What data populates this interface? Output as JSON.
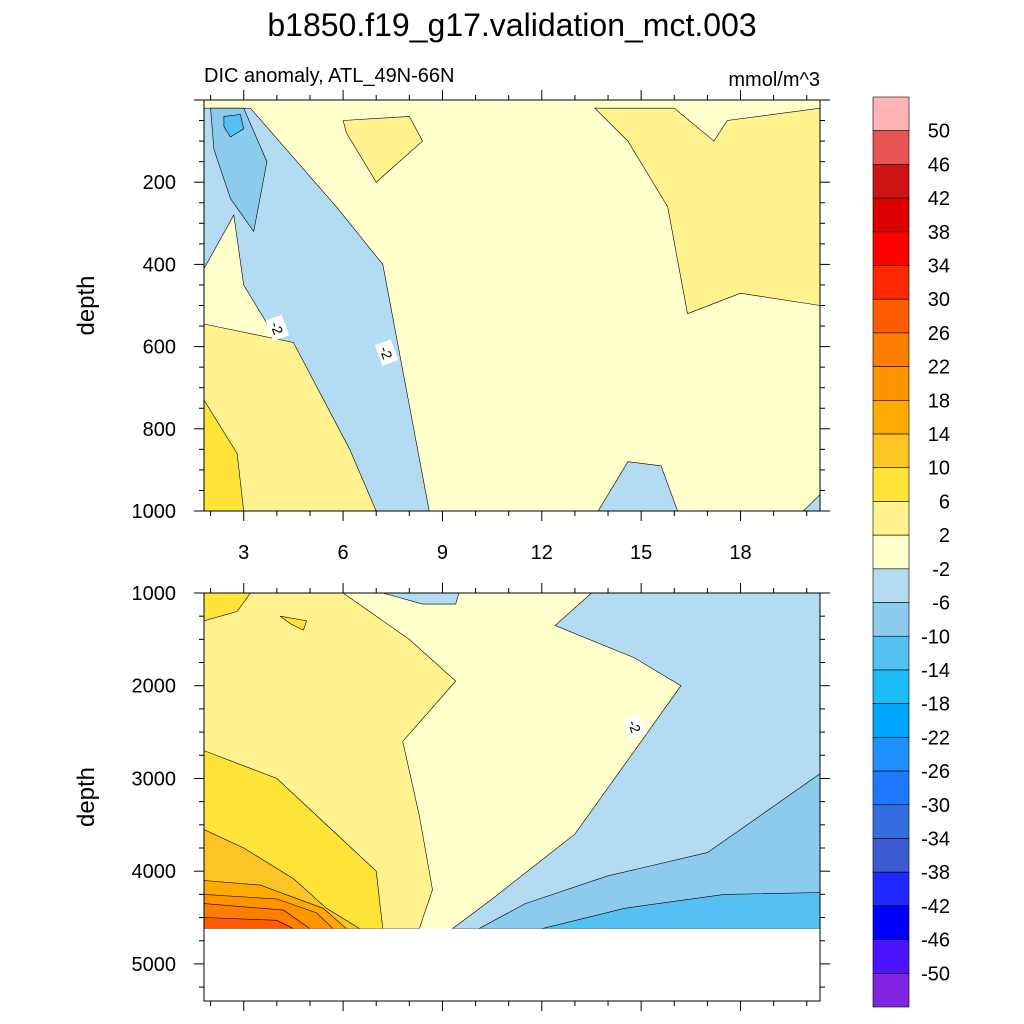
{
  "title": "b1850.f19_g17.validation_mct.003",
  "subtitle_left": "DIC anomaly, ATL_49N-66N",
  "subtitle_right": "mmol/m^3",
  "chart_data": [
    {
      "type": "heatmap",
      "panel": "upper",
      "ylabel": "depth",
      "xlim": [
        1.8,
        20.4
      ],
      "ylim": [
        1000,
        0
      ],
      "x_ticks": [
        3,
        6,
        9,
        12,
        15,
        18
      ],
      "y_ticks": [
        200,
        400,
        600,
        800,
        1000
      ],
      "contour_labels": [
        {
          "text": "-2",
          "x": 4.0,
          "y": 555
        },
        {
          "text": "-2",
          "x": 7.3,
          "y": 615
        }
      ],
      "regions": [
        {
          "level": "-6 to -2",
          "color": "#b3dcf2",
          "polygon": [
            [
              1.8,
              20
            ],
            [
              3.2,
              20
            ],
            [
              5.8,
              260
            ],
            [
              7.2,
              400
            ],
            [
              8.6,
              1000
            ],
            [
              7.0,
              1000
            ],
            [
              6.0,
              900
            ],
            [
              4.5,
              650
            ],
            [
              3.0,
              450
            ],
            [
              2.7,
              280
            ],
            [
              1.8,
              410
            ]
          ]
        },
        {
          "level": "-10 to -6",
          "color": "#8ccbec",
          "polygon": [
            [
              2.0,
              20
            ],
            [
              3.0,
              20
            ],
            [
              3.7,
              150
            ],
            [
              3.3,
              320
            ],
            [
              2.6,
              240
            ],
            [
              2.1,
              120
            ]
          ]
        },
        {
          "level": "-14 to -10",
          "color": "#55c0f2",
          "polygon": [
            [
              2.4,
              40
            ],
            [
              2.9,
              35
            ],
            [
              3.0,
              70
            ],
            [
              2.6,
              90
            ],
            [
              2.4,
              65
            ]
          ]
        },
        {
          "level": "2 to 6",
          "color": "#fff28f",
          "polygon": [
            [
              1.8,
              545
            ],
            [
              4.5,
              590
            ],
            [
              6.2,
              850
            ],
            [
              7.0,
              1000
            ],
            [
              1.8,
              1000
            ]
          ]
        },
        {
          "level": "6 to 10",
          "color": "#ffe338",
          "polygon": [
            [
              1.8,
              730
            ],
            [
              2.8,
              860
            ],
            [
              3.0,
              1000
            ],
            [
              1.8,
              1000
            ]
          ]
        },
        {
          "level": "2 to 6",
          "color": "#fff28f",
          "polygon": [
            [
              6.0,
              50
            ],
            [
              8.0,
              40
            ],
            [
              8.4,
              100
            ],
            [
              7.0,
              200
            ],
            [
              6.1,
              80
            ]
          ]
        },
        {
          "level": "2 to 6",
          "color": "#fff28f",
          "polygon": [
            [
              13.6,
              20
            ],
            [
              16.0,
              20
            ],
            [
              17.2,
              100
            ],
            [
              17.6,
              50
            ],
            [
              20.4,
              20
            ],
            [
              20.4,
              500
            ],
            [
              18.0,
              470
            ],
            [
              16.4,
              520
            ],
            [
              15.8,
              260
            ],
            [
              14.6,
              100
            ]
          ]
        },
        {
          "level": "-6 to -2",
          "color": "#b3dcf2",
          "polygon": [
            [
              13.7,
              1000
            ],
            [
              14.6,
              880
            ],
            [
              15.6,
              890
            ],
            [
              16.1,
              1000
            ]
          ]
        },
        {
          "level": "-6 to -2",
          "color": "#b3dcf2",
          "polygon": [
            [
              19.9,
              1000
            ],
            [
              20.4,
              960
            ],
            [
              20.4,
              1000
            ]
          ]
        }
      ]
    },
    {
      "type": "heatmap",
      "panel": "lower",
      "ylabel": "depth",
      "xlim": [
        1.8,
        20.4
      ],
      "ylim": [
        5400,
        1000
      ],
      "y_ticks": [
        1000,
        2000,
        3000,
        4000,
        5000
      ],
      "missing_below": 4620,
      "contour_labels": [
        {
          "text": "-2",
          "x": 14.8,
          "y": 2440
        }
      ],
      "regions": [
        {
          "level": "2 to 6",
          "color": "#fff28f",
          "polygon": [
            [
              1.8,
              1000
            ],
            [
              6.0,
              1000
            ],
            [
              8.0,
              1500
            ],
            [
              9.4,
              1950
            ],
            [
              7.8,
              2600
            ],
            [
              8.3,
              3400
            ],
            [
              8.7,
              4200
            ],
            [
              8.3,
              4620
            ],
            [
              1.8,
              4620
            ]
          ]
        },
        {
          "level": "6 to 10",
          "color": "#ffe338",
          "polygon": [
            [
              1.8,
              2700
            ],
            [
              4.0,
              3000
            ],
            [
              5.8,
              3600
            ],
            [
              7.0,
              4000
            ],
            [
              7.2,
              4620
            ],
            [
              1.8,
              4620
            ]
          ]
        },
        {
          "level": "10 to 14",
          "color": "#fcc424",
          "polygon": [
            [
              1.8,
              3550
            ],
            [
              3.0,
              3750
            ],
            [
              4.5,
              4080
            ],
            [
              5.5,
              4400
            ],
            [
              6.5,
              4620
            ],
            [
              1.8,
              4620
            ]
          ]
        },
        {
          "level": "14 to 18",
          "color": "#ffaa00",
          "polygon": [
            [
              1.8,
              4100
            ],
            [
              3.5,
              4150
            ],
            [
              5.4,
              4400
            ],
            [
              6.1,
              4620
            ],
            [
              1.8,
              4620
            ]
          ]
        },
        {
          "level": "18 to 22",
          "color": "#ff9300",
          "polygon": [
            [
              1.8,
              4250
            ],
            [
              4.0,
              4300
            ],
            [
              5.2,
              4450
            ],
            [
              5.7,
              4620
            ],
            [
              1.8,
              4620
            ]
          ]
        },
        {
          "level": "22 to 26",
          "color": "#ff7e00",
          "polygon": [
            [
              1.8,
              4350
            ],
            [
              4.2,
              4420
            ],
            [
              5.0,
              4620
            ],
            [
              1.8,
              4620
            ]
          ]
        },
        {
          "level": "26 to 30",
          "color": "#ff5b00",
          "polygon": [
            [
              1.8,
              4500
            ],
            [
              4.0,
              4530
            ],
            [
              4.5,
              4620
            ],
            [
              1.8,
              4620
            ]
          ]
        },
        {
          "level": "6 to 10",
          "color": "#ffe338",
          "polygon": [
            [
              1.8,
              1000
            ],
            [
              3.2,
              1000
            ],
            [
              2.8,
              1200
            ],
            [
              1.8,
              1300
            ]
          ]
        },
        {
          "level": "6 to 10",
          "color": "#ffe338",
          "polygon": [
            [
              4.1,
              1250
            ],
            [
              4.9,
              1300
            ],
            [
              4.8,
              1400
            ],
            [
              4.4,
              1330
            ]
          ]
        },
        {
          "level": "-6 to -2",
          "color": "#b3dcf2",
          "polygon": [
            [
              7.2,
              1000
            ],
            [
              9.5,
              1000
            ],
            [
              9.4,
              1120
            ],
            [
              8.4,
              1120
            ]
          ]
        },
        {
          "level": "-6 to -2",
          "color": "#b3dcf2",
          "polygon": [
            [
              13.5,
              1000
            ],
            [
              20.4,
              1000
            ],
            [
              20.4,
              4620
            ],
            [
              9.3,
              4620
            ],
            [
              10.5,
              4300
            ],
            [
              13.0,
              3600
            ],
            [
              15.0,
              2600
            ],
            [
              16.2,
              2000
            ],
            [
              14.8,
              1700
            ],
            [
              12.4,
              1350
            ]
          ]
        },
        {
          "level": "-10 to -6",
          "color": "#8ccbec",
          "polygon": [
            [
              20.4,
              2950
            ],
            [
              19.0,
              3300
            ],
            [
              17.0,
              3800
            ],
            [
              14.0,
              4050
            ],
            [
              11.5,
              4350
            ],
            [
              10.1,
              4620
            ],
            [
              20.4,
              4620
            ]
          ]
        },
        {
          "level": "-14 to -10",
          "color": "#55c0f2",
          "polygon": [
            [
              20.4,
              4230
            ],
            [
              17.5,
              4250
            ],
            [
              14.5,
              4400
            ],
            [
              12.0,
              4620
            ],
            [
              20.4,
              4620
            ]
          ]
        }
      ]
    }
  ],
  "colorbar": {
    "labels": [
      "50",
      "46",
      "42",
      "38",
      "34",
      "30",
      "26",
      "22",
      "18",
      "14",
      "10",
      "6",
      "2",
      "-2",
      "-6",
      "-10",
      "-14",
      "-18",
      "-22",
      "-26",
      "-30",
      "-34",
      "-38",
      "-42",
      "-46",
      "-50"
    ],
    "colors": [
      "#ffb3b3",
      "#e85454",
      "#cc1414",
      "#dd0000",
      "#ff0000",
      "#ff2800",
      "#ff5b00",
      "#ff7e00",
      "#ff9300",
      "#ffaa00",
      "#fcc424",
      "#ffe338",
      "#fff28f",
      "#ffffcc",
      "#b3dcf2",
      "#8ccbec",
      "#55c0f2",
      "#1cbcf8",
      "#00a5ff",
      "#1e90ff",
      "#1e78ff",
      "#326ee0",
      "#3c5ad2",
      "#1e28ff",
      "#0000ff",
      "#4a14ff",
      "#8024e0"
    ]
  }
}
